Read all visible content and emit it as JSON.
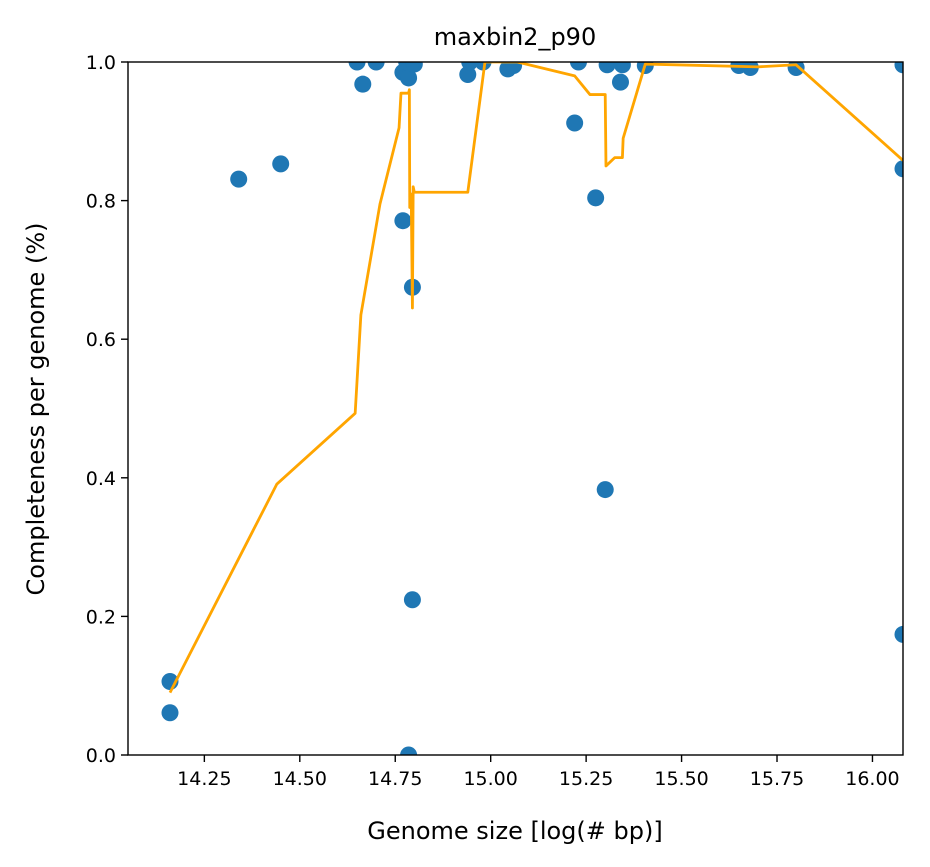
{
  "chart_data": {
    "type": "scatter",
    "title": "maxbin2_p90",
    "xlabel": "Genome size [log(# bp)]",
    "ylabel": "Completeness per genome (%)",
    "xlim": [
      14.05,
      16.08
    ],
    "ylim": [
      0.0,
      1.0
    ],
    "xticks": [
      14.25,
      14.5,
      14.75,
      15.0,
      15.25,
      15.5,
      15.75,
      16.0
    ],
    "xtick_labels": [
      "14.25",
      "14.50",
      "14.75",
      "15.00",
      "15.25",
      "15.50",
      "15.75",
      "16.00"
    ],
    "yticks": [
      0.0,
      0.2,
      0.4,
      0.6,
      0.8,
      1.0
    ],
    "ytick_labels": [
      "0.0",
      "0.2",
      "0.4",
      "0.6",
      "0.8",
      "1.0"
    ],
    "grid": false,
    "colors": {
      "points": "#1f77b4",
      "line": "#ffa500"
    },
    "series": [
      {
        "type": "scatter",
        "points": [
          [
            14.16,
            0.106
          ],
          [
            14.16,
            0.061
          ],
          [
            14.34,
            0.831
          ],
          [
            14.45,
            0.853
          ],
          [
            14.65,
            1.0
          ],
          [
            14.665,
            0.968
          ],
          [
            14.7,
            1.0
          ],
          [
            14.77,
            0.771
          ],
          [
            14.77,
            0.985
          ],
          [
            14.78,
            1.0
          ],
          [
            14.785,
            0.977
          ],
          [
            14.785,
            0.0
          ],
          [
            14.795,
            0.224
          ],
          [
            14.795,
            0.675
          ],
          [
            14.8,
            0.997
          ],
          [
            14.94,
            0.982
          ],
          [
            14.945,
            1.0
          ],
          [
            14.98,
            1.0
          ],
          [
            15.045,
            0.99
          ],
          [
            15.06,
            0.995
          ],
          [
            15.22,
            0.912
          ],
          [
            15.23,
            1.0
          ],
          [
            15.275,
            0.804
          ],
          [
            15.3,
            0.383
          ],
          [
            15.305,
            0.996
          ],
          [
            15.34,
            0.971
          ],
          [
            15.345,
            0.996
          ],
          [
            15.405,
            0.995
          ],
          [
            15.65,
            0.995
          ],
          [
            15.68,
            0.992
          ],
          [
            15.8,
            0.992
          ],
          [
            16.08,
            0.996
          ],
          [
            16.08,
            0.846
          ],
          [
            16.08,
            0.174
          ]
        ]
      },
      {
        "type": "line",
        "points": [
          [
            14.16,
            0.09
          ],
          [
            14.44,
            0.391
          ],
          [
            14.645,
            0.493
          ],
          [
            14.66,
            0.635
          ],
          [
            14.71,
            0.795
          ],
          [
            14.76,
            0.905
          ],
          [
            14.765,
            0.955
          ],
          [
            14.785,
            0.955
          ],
          [
            14.787,
            0.96
          ],
          [
            14.788,
            0.79
          ],
          [
            14.79,
            0.81
          ],
          [
            14.792,
            0.8
          ],
          [
            14.795,
            0.645
          ],
          [
            14.797,
            0.82
          ],
          [
            14.8,
            0.812
          ],
          [
            14.94,
            0.812
          ],
          [
            14.985,
            1.0
          ],
          [
            15.07,
            1.0
          ],
          [
            15.22,
            0.98
          ],
          [
            15.26,
            0.953
          ],
          [
            15.3,
            0.953
          ],
          [
            15.302,
            0.85
          ],
          [
            15.325,
            0.862
          ],
          [
            15.345,
            0.862
          ],
          [
            15.347,
            0.89
          ],
          [
            15.405,
            0.997
          ],
          [
            15.7,
            0.993
          ],
          [
            15.8,
            0.996
          ],
          [
            16.08,
            0.858
          ]
        ]
      }
    ]
  }
}
